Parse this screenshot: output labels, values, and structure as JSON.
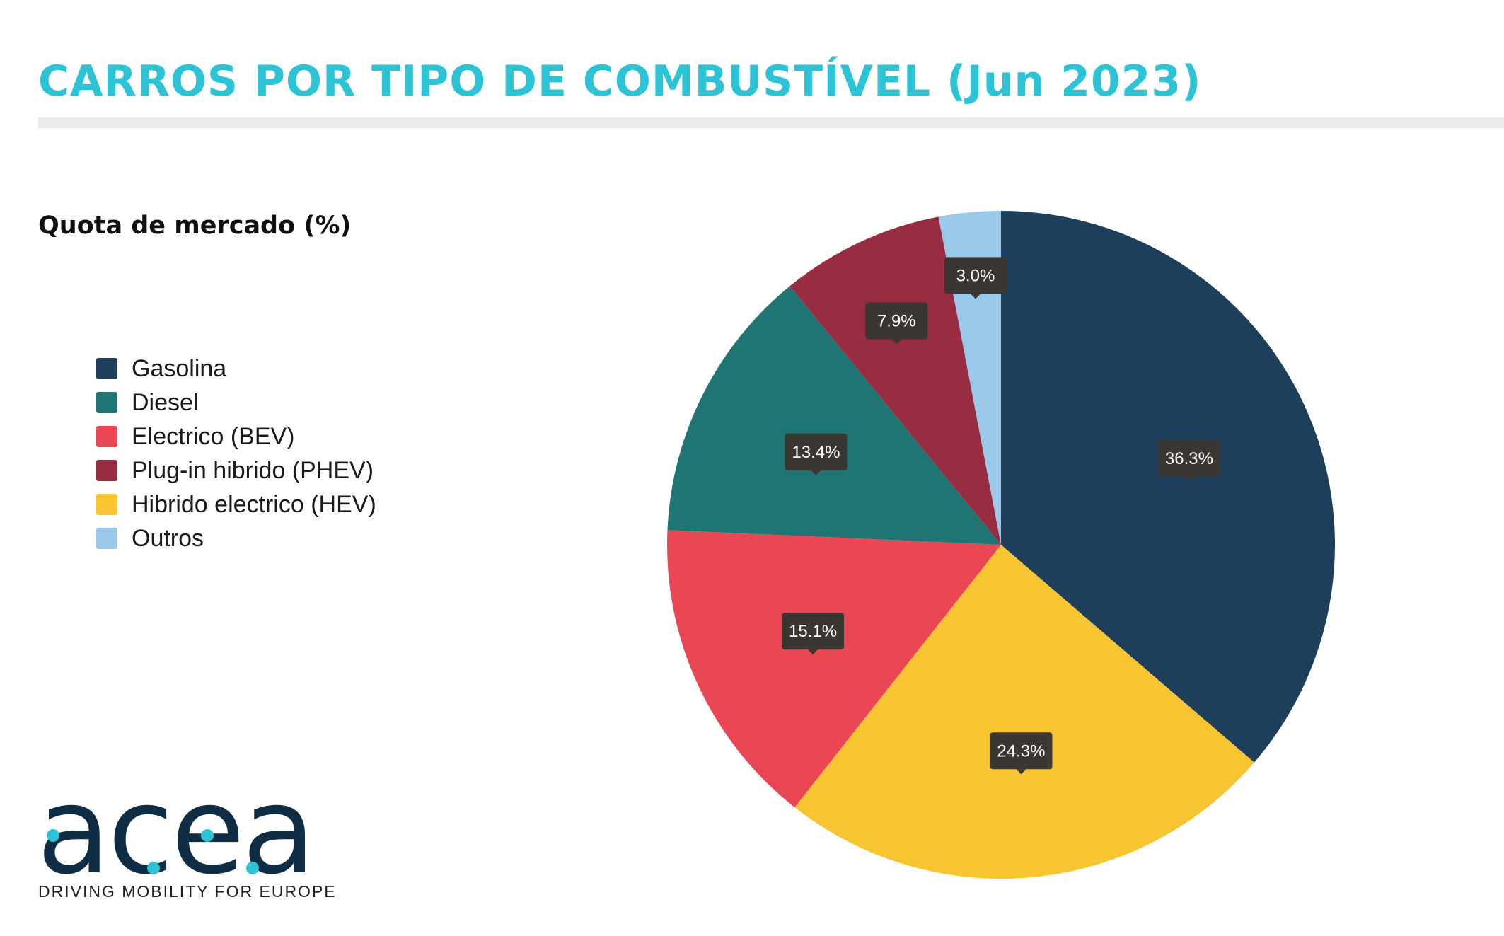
{
  "title": "CARROS POR TIPO DE COMBUSTÍVEL (Jun 2023)",
  "subtitle": "Quota de mercado (%)",
  "colors": {
    "title": "#2bc3d5",
    "label_bg": "#3a3631",
    "label_text": "#ffffff"
  },
  "logo": {
    "wordmark": "acea",
    "tagline": "DRIVING MOBILITY FOR EUROPE"
  },
  "chart_data": {
    "type": "pie",
    "title": "CARROS POR TIPO DE COMBUSTÍVEL (Jun 2023)",
    "subtitle": "Quota de mercado (%)",
    "legend_position": "left",
    "unit": "%",
    "slices": [
      {
        "label": "Gasolina",
        "value": 36.3,
        "display": "36.3%",
        "color": "#1d3f5c"
      },
      {
        "label": "Hibrido electrico (HEV)",
        "value": 24.3,
        "display": "24.3%",
        "color": "#f7c531"
      },
      {
        "label": "Electrico (BEV)",
        "value": 15.1,
        "display": "15.1%",
        "color": "#ea4653"
      },
      {
        "label": "Diesel",
        "value": 13.4,
        "display": "13.4%",
        "color": "#1f7573"
      },
      {
        "label": "Plug-in hibrido (PHEV)",
        "value": 7.9,
        "display": "7.9%",
        "color": "#982c40"
      },
      {
        "label": "Outros",
        "value": 3.0,
        "display": "3.0%",
        "color": "#9ac9ea"
      }
    ],
    "legend": [
      {
        "label": "Gasolina",
        "color": "#1d3f5c"
      },
      {
        "label": "Diesel",
        "color": "#1f7573"
      },
      {
        "label": "Electrico (BEV)",
        "color": "#ea4653"
      },
      {
        "label": "Plug-in hibrido (PHEV)",
        "color": "#982c40"
      },
      {
        "label": "Hibrido electrico (HEV)",
        "color": "#f7c531"
      },
      {
        "label": "Outros",
        "color": "#9ac9ea"
      }
    ]
  }
}
